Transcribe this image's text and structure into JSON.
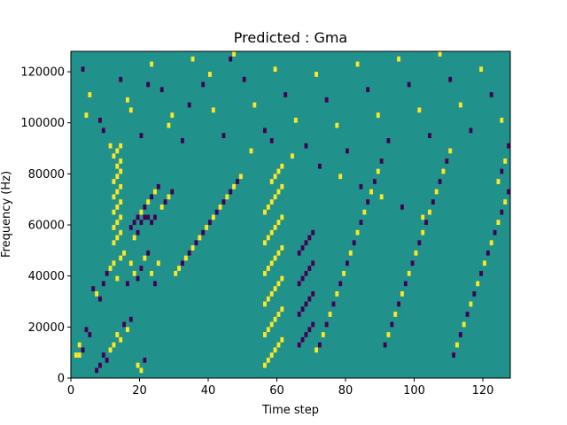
{
  "chart_data": {
    "type": "heatmap",
    "title": "Predicted : Gma",
    "xlabel": "Time step",
    "ylabel": "Frequency (Hz)",
    "xlim": [
      0,
      128
    ],
    "ylim": [
      0,
      128000
    ],
    "xticks": [
      0,
      20,
      40,
      60,
      80,
      100,
      120
    ],
    "yticks": [
      0,
      20000,
      40000,
      60000,
      80000,
      100000,
      120000
    ],
    "xtick_labels": [
      "0",
      "20",
      "40",
      "60",
      "80",
      "100",
      "120"
    ],
    "ytick_labels": [
      "0",
      "20000",
      "40000",
      "60000",
      "80000",
      "100000",
      "120000"
    ],
    "grid": false,
    "n_time": 128,
    "n_freq": 64,
    "bin_height_hz": 2000,
    "value_levels": [
      -1,
      0,
      1
    ],
    "colors": {
      "-1": "#440154",
      "0": "#21918c",
      "1": "#fde725"
    },
    "background_value": 0,
    "cells": [
      [
        1,
        4,
        1
      ],
      [
        2,
        4,
        1
      ],
      [
        2,
        6,
        1
      ],
      [
        3,
        5,
        -1
      ],
      [
        4,
        9,
        -1
      ],
      [
        5,
        8,
        -1
      ],
      [
        7,
        1,
        -1
      ],
      [
        8,
        2,
        -1
      ],
      [
        9,
        4,
        -1
      ],
      [
        10,
        3,
        -1
      ],
      [
        11,
        5,
        1
      ],
      [
        12,
        6,
        1
      ],
      [
        13,
        8,
        1
      ],
      [
        14,
        7,
        1
      ],
      [
        15,
        10,
        -1
      ],
      [
        16,
        9,
        1
      ],
      [
        17,
        11,
        -1
      ],
      [
        19,
        2,
        1
      ],
      [
        20,
        1,
        1
      ],
      [
        21,
        3,
        -1
      ],
      [
        6,
        17,
        -1
      ],
      [
        7,
        16,
        1
      ],
      [
        8,
        15,
        -1
      ],
      [
        9,
        18,
        -1
      ],
      [
        10,
        20,
        -1
      ],
      [
        11,
        21,
        1
      ],
      [
        12,
        22,
        1
      ],
      [
        13,
        19,
        1
      ],
      [
        14,
        23,
        1
      ],
      [
        15,
        24,
        1
      ],
      [
        16,
        18,
        -1
      ],
      [
        17,
        22,
        1
      ],
      [
        18,
        20,
        1
      ],
      [
        19,
        19,
        -1
      ],
      [
        20,
        21,
        -1
      ],
      [
        21,
        23,
        1
      ],
      [
        22,
        24,
        -1
      ],
      [
        23,
        20,
        1
      ],
      [
        24,
        18,
        -1
      ],
      [
        25,
        22,
        1
      ],
      [
        12,
        26,
        1
      ],
      [
        13,
        27,
        1
      ],
      [
        14,
        28,
        1
      ],
      [
        12,
        29,
        1
      ],
      [
        13,
        30,
        1
      ],
      [
        14,
        31,
        1
      ],
      [
        12,
        32,
        1
      ],
      [
        13,
        33,
        1
      ],
      [
        14,
        34,
        1
      ],
      [
        12,
        35,
        1
      ],
      [
        13,
        36,
        1
      ],
      [
        14,
        37,
        1
      ],
      [
        12,
        38,
        1
      ],
      [
        13,
        39,
        1
      ],
      [
        14,
        40,
        1
      ],
      [
        13,
        41,
        1
      ],
      [
        14,
        42,
        1
      ],
      [
        12,
        43,
        1
      ],
      [
        13,
        44,
        1
      ],
      [
        14,
        45,
        1
      ],
      [
        17,
        29,
        -1
      ],
      [
        18,
        30,
        -1
      ],
      [
        19,
        31,
        -1
      ],
      [
        20,
        30,
        -1
      ],
      [
        21,
        31,
        -1
      ],
      [
        22,
        31,
        -1
      ],
      [
        23,
        30,
        -1
      ],
      [
        24,
        31,
        -1
      ],
      [
        18,
        27,
        1
      ],
      [
        19,
        28,
        -1
      ],
      [
        20,
        32,
        1
      ],
      [
        21,
        33,
        -1
      ],
      [
        22,
        34,
        1
      ],
      [
        23,
        35,
        -1
      ],
      [
        24,
        36,
        1
      ],
      [
        25,
        37,
        -1
      ],
      [
        26,
        33,
        1
      ],
      [
        27,
        34,
        -1
      ],
      [
        28,
        35,
        1
      ],
      [
        29,
        36,
        -1
      ],
      [
        30,
        20,
        1
      ],
      [
        31,
        21,
        1
      ],
      [
        32,
        22,
        -1
      ],
      [
        33,
        23,
        1
      ],
      [
        34,
        24,
        -1
      ],
      [
        35,
        25,
        1
      ],
      [
        36,
        26,
        -1
      ],
      [
        37,
        27,
        1
      ],
      [
        38,
        28,
        -1
      ],
      [
        39,
        29,
        1
      ],
      [
        40,
        30,
        -1
      ],
      [
        41,
        31,
        1
      ],
      [
        42,
        32,
        -1
      ],
      [
        43,
        33,
        1
      ],
      [
        44,
        34,
        -1
      ],
      [
        45,
        35,
        1
      ],
      [
        46,
        36,
        -1
      ],
      [
        47,
        37,
        1
      ],
      [
        48,
        38,
        -1
      ],
      [
        49,
        39,
        1
      ],
      [
        56,
        2,
        1
      ],
      [
        57,
        3,
        1
      ],
      [
        58,
        4,
        1
      ],
      [
        59,
        5,
        1
      ],
      [
        60,
        6,
        1
      ],
      [
        61,
        7,
        1
      ],
      [
        56,
        8,
        1
      ],
      [
        57,
        9,
        1
      ],
      [
        58,
        10,
        1
      ],
      [
        59,
        11,
        1
      ],
      [
        60,
        12,
        1
      ],
      [
        61,
        13,
        1
      ],
      [
        56,
        14,
        1
      ],
      [
        57,
        15,
        1
      ],
      [
        58,
        16,
        1
      ],
      [
        59,
        17,
        1
      ],
      [
        60,
        18,
        1
      ],
      [
        61,
        19,
        1
      ],
      [
        56,
        20,
        1
      ],
      [
        57,
        21,
        1
      ],
      [
        58,
        22,
        1
      ],
      [
        59,
        23,
        1
      ],
      [
        60,
        24,
        1
      ],
      [
        61,
        25,
        1
      ],
      [
        56,
        26,
        1
      ],
      [
        57,
        27,
        1
      ],
      [
        58,
        28,
        1
      ],
      [
        59,
        29,
        1
      ],
      [
        60,
        30,
        1
      ],
      [
        61,
        31,
        1
      ],
      [
        56,
        32,
        1
      ],
      [
        57,
        33,
        1
      ],
      [
        58,
        34,
        1
      ],
      [
        59,
        35,
        1
      ],
      [
        60,
        36,
        1
      ],
      [
        61,
        37,
        1
      ],
      [
        58,
        38,
        1
      ],
      [
        59,
        39,
        1
      ],
      [
        60,
        40,
        1
      ],
      [
        61,
        41,
        1
      ],
      [
        66,
        6,
        -1
      ],
      [
        67,
        7,
        -1
      ],
      [
        68,
        8,
        -1
      ],
      [
        69,
        9,
        -1
      ],
      [
        70,
        10,
        -1
      ],
      [
        66,
        12,
        -1
      ],
      [
        67,
        13,
        -1
      ],
      [
        68,
        14,
        -1
      ],
      [
        69,
        15,
        -1
      ],
      [
        70,
        16,
        -1
      ],
      [
        66,
        18,
        -1
      ],
      [
        67,
        19,
        -1
      ],
      [
        68,
        20,
        -1
      ],
      [
        69,
        21,
        -1
      ],
      [
        70,
        22,
        -1
      ],
      [
        66,
        24,
        -1
      ],
      [
        67,
        25,
        -1
      ],
      [
        68,
        26,
        -1
      ],
      [
        69,
        27,
        -1
      ],
      [
        70,
        28,
        -1
      ],
      [
        71,
        5,
        1
      ],
      [
        72,
        6,
        -1
      ],
      [
        73,
        8,
        1
      ],
      [
        74,
        10,
        -1
      ],
      [
        75,
        12,
        1
      ],
      [
        76,
        14,
        -1
      ],
      [
        77,
        16,
        1
      ],
      [
        78,
        18,
        -1
      ],
      [
        79,
        20,
        1
      ],
      [
        80,
        22,
        -1
      ],
      [
        81,
        24,
        1
      ],
      [
        82,
        26,
        -1
      ],
      [
        83,
        28,
        1
      ],
      [
        84,
        30,
        -1
      ],
      [
        85,
        32,
        1
      ],
      [
        86,
        34,
        -1
      ],
      [
        87,
        36,
        1
      ],
      [
        88,
        38,
        -1
      ],
      [
        89,
        40,
        1
      ],
      [
        90,
        42,
        -1
      ],
      [
        91,
        6,
        -1
      ],
      [
        92,
        8,
        1
      ],
      [
        93,
        10,
        -1
      ],
      [
        94,
        12,
        1
      ],
      [
        95,
        14,
        -1
      ],
      [
        96,
        16,
        1
      ],
      [
        97,
        18,
        -1
      ],
      [
        98,
        20,
        1
      ],
      [
        99,
        22,
        -1
      ],
      [
        100,
        24,
        1
      ],
      [
        101,
        26,
        -1
      ],
      [
        102,
        28,
        1
      ],
      [
        103,
        30,
        -1
      ],
      [
        104,
        32,
        1
      ],
      [
        105,
        34,
        -1
      ],
      [
        106,
        36,
        1
      ],
      [
        107,
        38,
        -1
      ],
      [
        108,
        40,
        1
      ],
      [
        109,
        42,
        -1
      ],
      [
        110,
        44,
        1
      ],
      [
        111,
        4,
        -1
      ],
      [
        112,
        6,
        1
      ],
      [
        113,
        8,
        -1
      ],
      [
        114,
        10,
        1
      ],
      [
        115,
        12,
        -1
      ],
      [
        116,
        14,
        1
      ],
      [
        117,
        16,
        -1
      ],
      [
        118,
        18,
        1
      ],
      [
        119,
        20,
        -1
      ],
      [
        120,
        22,
        1
      ],
      [
        121,
        24,
        -1
      ],
      [
        122,
        26,
        1
      ],
      [
        123,
        28,
        -1
      ],
      [
        124,
        30,
        1
      ],
      [
        125,
        32,
        -1
      ],
      [
        126,
        34,
        1
      ],
      [
        127,
        36,
        -1
      ],
      [
        124,
        38,
        1
      ],
      [
        125,
        40,
        -1
      ],
      [
        126,
        42,
        1
      ],
      [
        3,
        60,
        -1
      ],
      [
        5,
        55,
        1
      ],
      [
        8,
        50,
        -1
      ],
      [
        11,
        45,
        1
      ],
      [
        14,
        58,
        -1
      ],
      [
        17,
        52,
        1
      ],
      [
        20,
        47,
        -1
      ],
      [
        23,
        61,
        1
      ],
      [
        26,
        56,
        -1
      ],
      [
        29,
        51,
        1
      ],
      [
        32,
        46,
        -1
      ],
      [
        35,
        62,
        1
      ],
      [
        38,
        57,
        -1
      ],
      [
        41,
        52,
        1
      ],
      [
        44,
        47,
        -1
      ],
      [
        47,
        63,
        1
      ],
      [
        50,
        58,
        -1
      ],
      [
        53,
        53,
        1
      ],
      [
        56,
        48,
        -1
      ],
      [
        59,
        60,
        1
      ],
      [
        62,
        55,
        -1
      ],
      [
        65,
        50,
        1
      ],
      [
        68,
        45,
        -1
      ],
      [
        71,
        59,
        1
      ],
      [
        74,
        54,
        -1
      ],
      [
        77,
        49,
        1
      ],
      [
        80,
        44,
        -1
      ],
      [
        83,
        61,
        1
      ],
      [
        86,
        56,
        -1
      ],
      [
        89,
        51,
        1
      ],
      [
        92,
        46,
        -1
      ],
      [
        95,
        62,
        1
      ],
      [
        98,
        57,
        -1
      ],
      [
        101,
        52,
        1
      ],
      [
        104,
        47,
        -1
      ],
      [
        107,
        63,
        1
      ],
      [
        110,
        58,
        -1
      ],
      [
        113,
        53,
        1
      ],
      [
        116,
        48,
        -1
      ],
      [
        119,
        60,
        1
      ],
      [
        122,
        55,
        -1
      ],
      [
        125,
        50,
        1
      ],
      [
        127,
        45,
        -1
      ],
      [
        4,
        51,
        1
      ],
      [
        9,
        48,
        -1
      ],
      [
        16,
        54,
        1
      ],
      [
        22,
        57,
        -1
      ],
      [
        28,
        49,
        1
      ],
      [
        34,
        53,
        -1
      ],
      [
        40,
        59,
        1
      ],
      [
        46,
        62,
        -1
      ],
      [
        52,
        44,
        1
      ],
      [
        58,
        46,
        -1
      ],
      [
        64,
        43,
        1
      ],
      [
        72,
        41,
        -1
      ],
      [
        78,
        39,
        1
      ],
      [
        84,
        37,
        -1
      ],
      [
        90,
        35,
        1
      ],
      [
        96,
        33,
        -1
      ],
      [
        102,
        31,
        1
      ]
    ]
  }
}
